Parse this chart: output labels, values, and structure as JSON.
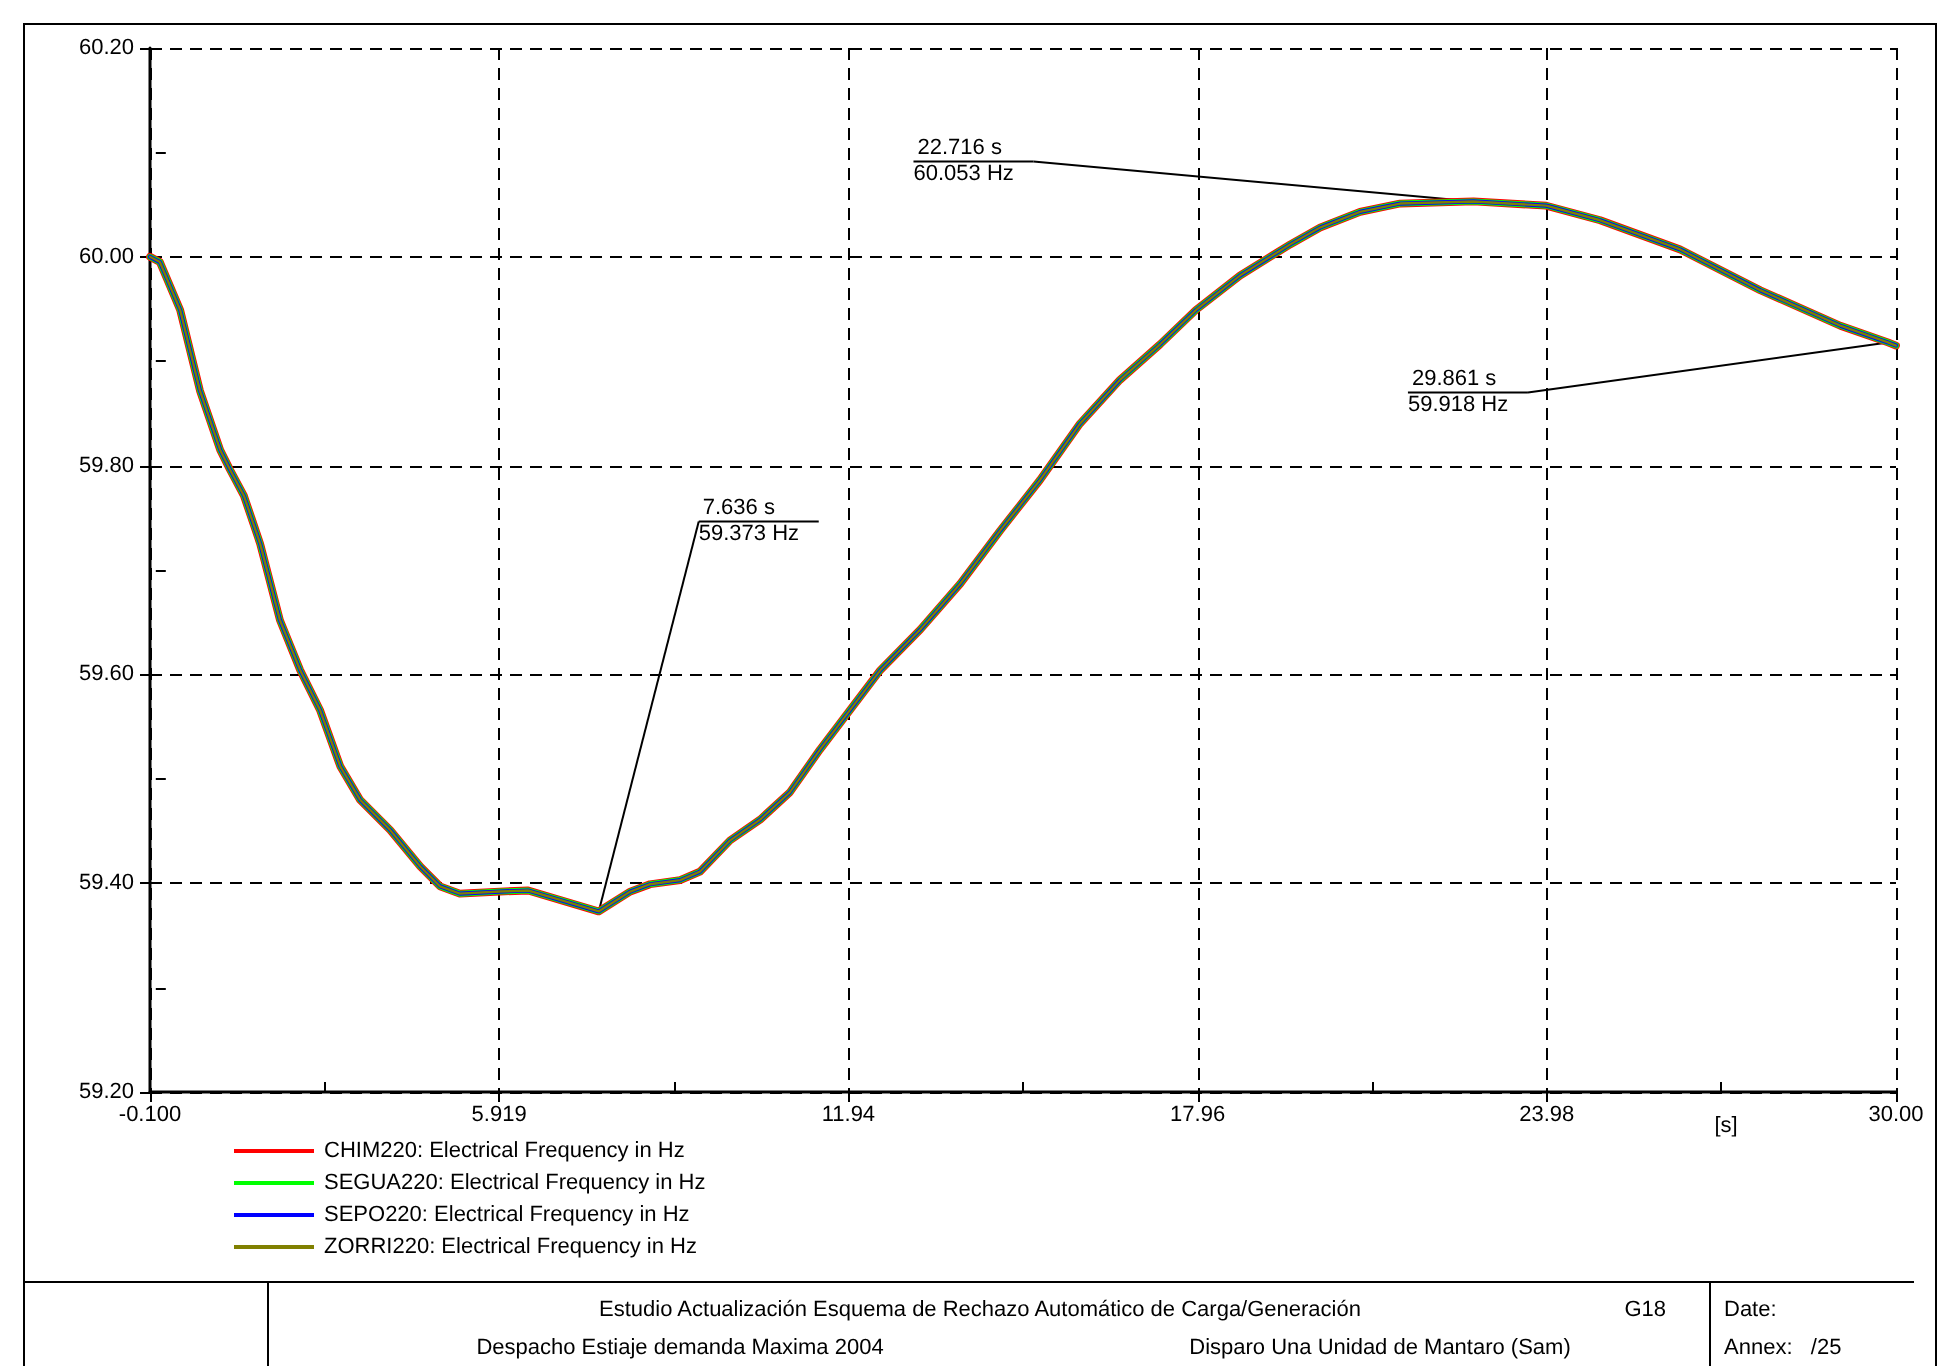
{
  "chart_data": {
    "type": "line",
    "title": "Estudio Actualización Esquema de Rechazo Automático de Carga/Generación",
    "subtitle": "Despacho Estiaje demanda Maxima 2004",
    "xlabel": "[s]",
    "x": [
      -0.1,
      0.07,
      0.42,
      0.76,
      1.11,
      1.28,
      1.52,
      1.8,
      2.14,
      2.49,
      2.83,
      3.18,
      3.52,
      4.04,
      4.56,
      4.9,
      5.24,
      5.93,
      6.42,
      6.97,
      7.636,
      8.18,
      8.52,
      9.04,
      9.38,
      9.9,
      10.42,
      10.93,
      11.45,
      11.97,
      12.49,
      13.18,
      13.87,
      14.56,
      15.24,
      15.93,
      16.62,
      17.31,
      17.93,
      18.69,
      19.56,
      20.07,
      20.76,
      21.45,
      22.716,
      23.97,
      24.9,
      26.28,
      27.66,
      29.04,
      29.861,
      30.0
    ],
    "series": [
      {
        "name": "CHIM220: Electrical Frequency in Hz",
        "color": "#ff0000",
        "values": [
          60.0,
          59.995,
          59.949,
          59.872,
          59.815,
          59.796,
          59.771,
          59.725,
          59.652,
          59.604,
          59.566,
          59.512,
          59.48,
          59.451,
          59.416,
          59.397,
          59.39,
          59.392,
          59.393,
          59.384,
          59.373,
          59.392,
          59.399,
          59.403,
          59.411,
          59.441,
          59.461,
          59.487,
          59.528,
          59.566,
          59.604,
          59.643,
          59.687,
          59.738,
          59.786,
          59.84,
          59.882,
          59.916,
          59.949,
          59.982,
          60.012,
          60.028,
          60.043,
          60.051,
          60.053,
          60.049,
          60.035,
          60.007,
          59.968,
          59.934,
          59.918,
          59.915
        ]
      },
      {
        "name": "SEGUA220: Electrical Frequency in Hz",
        "color": "#00ff00",
        "values": [
          60.0,
          59.995,
          59.949,
          59.872,
          59.815,
          59.796,
          59.771,
          59.725,
          59.652,
          59.604,
          59.566,
          59.512,
          59.48,
          59.451,
          59.416,
          59.397,
          59.39,
          59.392,
          59.393,
          59.384,
          59.373,
          59.392,
          59.399,
          59.403,
          59.411,
          59.441,
          59.461,
          59.487,
          59.528,
          59.566,
          59.604,
          59.643,
          59.687,
          59.738,
          59.786,
          59.84,
          59.882,
          59.916,
          59.949,
          59.982,
          60.012,
          60.028,
          60.043,
          60.051,
          60.053,
          60.049,
          60.035,
          60.007,
          59.968,
          59.934,
          59.918,
          59.915
        ]
      },
      {
        "name": "SEPO220: Electrical Frequency in Hz",
        "color": "#0000ff",
        "values": [
          60.0,
          59.995,
          59.949,
          59.872,
          59.815,
          59.796,
          59.771,
          59.725,
          59.652,
          59.604,
          59.566,
          59.512,
          59.48,
          59.451,
          59.416,
          59.397,
          59.39,
          59.392,
          59.393,
          59.384,
          59.373,
          59.392,
          59.399,
          59.403,
          59.411,
          59.441,
          59.461,
          59.487,
          59.528,
          59.566,
          59.604,
          59.643,
          59.687,
          59.738,
          59.786,
          59.84,
          59.882,
          59.916,
          59.949,
          59.982,
          60.012,
          60.028,
          60.043,
          60.051,
          60.053,
          60.049,
          60.035,
          60.007,
          59.968,
          59.934,
          59.918,
          59.915
        ]
      },
      {
        "name": "ZORRI220: Electrical Frequency in Hz",
        "color": "#808000",
        "values": [
          60.0,
          59.995,
          59.949,
          59.872,
          59.815,
          59.796,
          59.771,
          59.725,
          59.652,
          59.604,
          59.566,
          59.512,
          59.48,
          59.451,
          59.416,
          59.397,
          59.39,
          59.392,
          59.393,
          59.384,
          59.373,
          59.392,
          59.399,
          59.403,
          59.411,
          59.441,
          59.461,
          59.487,
          59.528,
          59.566,
          59.604,
          59.643,
          59.687,
          59.738,
          59.786,
          59.84,
          59.882,
          59.916,
          59.949,
          59.982,
          60.012,
          60.028,
          60.043,
          60.051,
          60.053,
          60.049,
          60.035,
          60.007,
          59.968,
          59.934,
          59.918,
          59.915
        ]
      }
    ],
    "xlim": [
      -0.1,
      30.0
    ],
    "xticks": [
      {
        "value": -0.1,
        "label": "-0.100"
      },
      {
        "value": 2.91,
        "label": null
      },
      {
        "value": 5.919,
        "label": "5.919"
      },
      {
        "value": 8.93,
        "label": null
      },
      {
        "value": 11.94,
        "label": "11.94"
      },
      {
        "value": 14.95,
        "label": null
      },
      {
        "value": 17.96,
        "label": "17.96"
      },
      {
        "value": 20.97,
        "label": null
      },
      {
        "value": 23.98,
        "label": "23.98"
      },
      {
        "value": 26.99,
        "label": null
      },
      {
        "value": 30.0,
        "label": "30.00"
      }
    ],
    "ylim": [
      59.2,
      60.2
    ],
    "yticks": [
      {
        "value": 59.2,
        "label": "59.20"
      },
      {
        "value": 59.3,
        "label": null
      },
      {
        "value": 59.4,
        "label": "59.40"
      },
      {
        "value": 59.5,
        "label": null
      },
      {
        "value": 59.6,
        "label": "59.60"
      },
      {
        "value": 59.7,
        "label": null
      },
      {
        "value": 59.8,
        "label": "59.80"
      },
      {
        "value": 59.9,
        "label": null
      },
      {
        "value": 60.0,
        "label": "60.00"
      },
      {
        "value": 60.1,
        "label": null
      },
      {
        "value": 60.2,
        "label": "60.20"
      }
    ],
    "grid": true,
    "legend": "bottom left",
    "line_style": "solid",
    "marker": "none",
    "annotations": [
      {
        "text": "7.636 s\n59.373 Hz",
        "x": 7.636,
        "y": 59.373
      },
      {
        "text": "22.716 s\n60.053 Hz",
        "x": 22.716,
        "y": 60.053
      },
      {
        "text": "29.861 s\n59.918 Hz",
        "x": 29.861,
        "y": 59.918
      },
      "Disparo Una Unidad de Mantaro (Sam)",
      "G18",
      "Date:",
      "Annex:   /25"
    ]
  }
}
